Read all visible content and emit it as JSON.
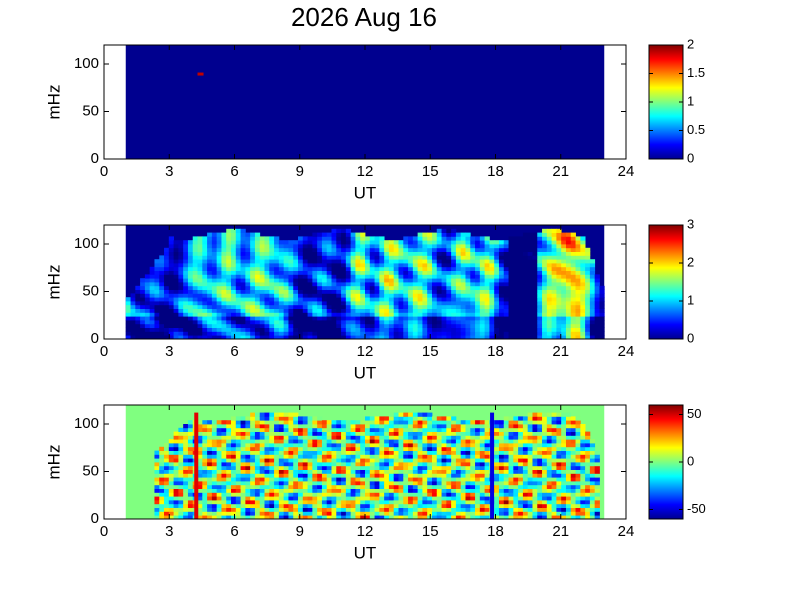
{
  "title": "2026 Aug 16",
  "chart_data": [
    {
      "type": "heatmap",
      "xlabel": "UT",
      "ylabel": "mHz",
      "xlim": [
        0,
        24
      ],
      "xticks": [
        0,
        3,
        6,
        9,
        12,
        15,
        18,
        21,
        24
      ],
      "ylim": [
        0,
        120
      ],
      "yticks": [
        0,
        50,
        100
      ],
      "data_range": [
        1,
        23
      ],
      "colormap": "jet",
      "colorbar": {
        "lim": [
          0,
          2
        ],
        "ticks": [
          0,
          0.5,
          1,
          1.5,
          2
        ]
      }
    },
    {
      "type": "heatmap",
      "xlabel": "UT",
      "ylabel": "mHz",
      "xlim": [
        0,
        24
      ],
      "xticks": [
        0,
        3,
        6,
        9,
        12,
        15,
        18,
        21,
        24
      ],
      "ylim": [
        0,
        120
      ],
      "yticks": [
        0,
        50,
        100
      ],
      "data_range": [
        1,
        23
      ],
      "colormap": "jet",
      "colorbar": {
        "lim": [
          0,
          3
        ],
        "ticks": [
          0,
          1,
          2,
          3
        ]
      }
    },
    {
      "type": "heatmap",
      "xlabel": "UT",
      "ylabel": "mHz",
      "xlim": [
        0,
        24
      ],
      "xticks": [
        0,
        3,
        6,
        9,
        12,
        15,
        18,
        21,
        24
      ],
      "ylim": [
        0,
        120
      ],
      "yticks": [
        0,
        50,
        100
      ],
      "data_range": [
        1,
        23
      ],
      "colormap": "jet",
      "colorbar": {
        "lim": [
          -60,
          60
        ],
        "ticks": [
          -50,
          0,
          50
        ]
      }
    }
  ]
}
